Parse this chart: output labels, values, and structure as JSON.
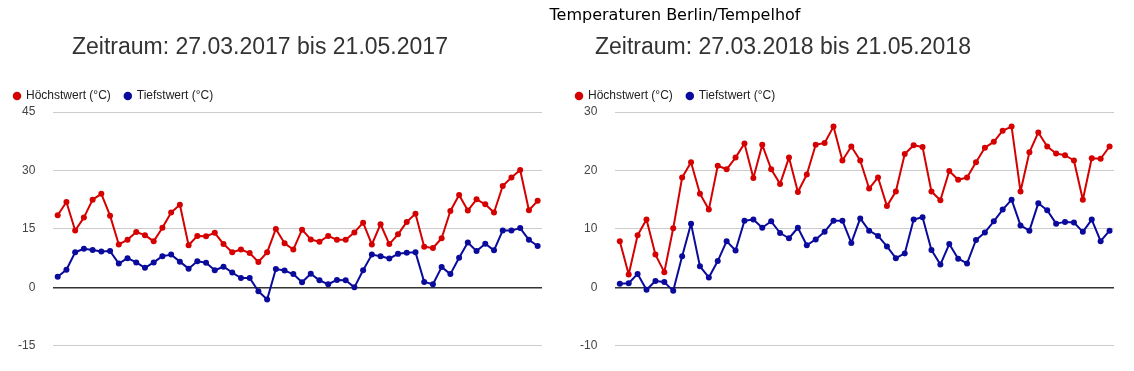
{
  "chart_data": [
    {
      "type": "line",
      "title": "Zeitraum: 27.03.2017 bis 21.05.2017",
      "annotations": [
        "Temperaturen Berlin/Tempelhof"
      ],
      "categories": [
        null,
        null,
        null,
        null,
        null,
        null,
        null,
        null,
        null,
        null,
        null,
        null,
        null,
        null,
        null,
        null,
        null,
        null,
        null,
        null,
        null,
        null,
        null,
        null,
        null,
        null,
        null,
        null,
        null,
        null,
        null,
        null,
        null,
        null,
        null,
        null,
        null,
        null,
        null,
        null,
        null,
        null,
        null,
        null,
        null,
        null,
        null,
        null,
        null,
        null,
        null,
        null,
        null,
        null,
        null,
        null
      ],
      "series": [
        {
          "name": "Höchstwert (°C)",
          "color": "#d50000",
          "values": [
            18.5,
            21.9,
            14.6,
            17.9,
            22.5,
            24.0,
            18.4,
            11.0,
            12.2,
            14.2,
            13.4,
            11.8,
            15.3,
            19.2,
            21.2,
            10.8,
            13.2,
            13.1,
            14.0,
            11.1,
            9.0,
            9.7,
            8.8,
            6.5,
            9.0,
            15.0,
            11.3,
            9.7,
            14.8,
            12.3,
            11.7,
            13.2,
            12.2,
            12.2,
            14.1,
            16.6,
            11.0,
            16.2,
            11.1,
            13.6,
            16.8,
            18.9,
            10.4,
            10.1,
            12.6,
            19.6,
            23.7,
            19.7,
            22.6,
            21.3,
            19.2,
            26.0,
            28.2,
            30.1,
            19.8,
            22.2
          ]
        },
        {
          "name": "Tiefstwert (°C)",
          "color": "#0a0a9c",
          "values": [
            2.7,
            4.5,
            9.0,
            9.9,
            9.6,
            9.2,
            9.3,
            6.1,
            7.5,
            6.4,
            5.0,
            6.4,
            8.0,
            8.4,
            6.6,
            4.8,
            6.7,
            6.3,
            4.4,
            5.3,
            3.8,
            2.4,
            2.4,
            -1.0,
            -3.1,
            4.7,
            4.3,
            3.4,
            1.3,
            3.5,
            1.8,
            0.8,
            1.9,
            1.8,
            0.0,
            4.4,
            8.4,
            8.0,
            7.4,
            8.6,
            8.9,
            9.0,
            1.4,
            0.8,
            5.2,
            3.4,
            7.6,
            11.5,
            9.3,
            11.2,
            9.5,
            14.6,
            14.6,
            15.2,
            12.2,
            10.6
          ]
        }
      ],
      "ylim": [
        -15,
        45
      ],
      "yticks": [
        -15,
        0,
        15,
        30,
        45
      ],
      "grid": "y",
      "legend": "top left",
      "tick_labels": "y",
      "marker": "circle",
      "line_style": "solid"
    },
    {
      "type": "line",
      "title": "Zeitraum: 27.03.2018 bis 21.05.2018",
      "categories": [
        null,
        null,
        null,
        null,
        null,
        null,
        null,
        null,
        null,
        null,
        null,
        null,
        null,
        null,
        null,
        null,
        null,
        null,
        null,
        null,
        null,
        null,
        null,
        null,
        null,
        null,
        null,
        null,
        null,
        null,
        null,
        null,
        null,
        null,
        null,
        null,
        null,
        null,
        null,
        null,
        null,
        null,
        null,
        null,
        null,
        null,
        null,
        null,
        null,
        null,
        null,
        null,
        null,
        null,
        null,
        null
      ],
      "series": [
        {
          "name": "Höchstwert (°C)",
          "color": "#d50000",
          "values": [
            7.9,
            2.2,
            8.9,
            11.6,
            5.6,
            2.6,
            10.1,
            18.8,
            21.4,
            16.0,
            13.3,
            20.8,
            20.2,
            22.2,
            24.6,
            18.7,
            24.4,
            20.2,
            17.7,
            22.2,
            16.3,
            19.3,
            24.4,
            24.7,
            27.5,
            21.7,
            24.1,
            21.7,
            16.9,
            18.8,
            13.9,
            16.4,
            22.8,
            24.3,
            24.0,
            16.4,
            14.9,
            19.9,
            18.4,
            18.8,
            21.4,
            23.9,
            24.9,
            26.8,
            27.5,
            16.4,
            23.1,
            26.5,
            24.1,
            22.9,
            22.6,
            21.7,
            15.0,
            22.1,
            22.0,
            24.1
          ]
        },
        {
          "name": "Tiefstwert (°C)",
          "color": "#0a0a9c",
          "values": [
            0.6,
            0.7,
            2.3,
            -0.4,
            1.1,
            0.9,
            -0.6,
            5.3,
            10.9,
            3.6,
            1.7,
            4.5,
            7.9,
            6.3,
            11.4,
            11.6,
            10.2,
            11.3,
            9.3,
            8.4,
            10.2,
            7.2,
            8.2,
            9.5,
            11.4,
            11.4,
            7.6,
            11.8,
            9.7,
            8.8,
            7.0,
            5.0,
            5.8,
            11.6,
            12.0,
            6.4,
            3.9,
            7.4,
            4.9,
            4.1,
            8.1,
            9.4,
            11.3,
            13.3,
            15.0,
            10.6,
            9.7,
            14.4,
            13.2,
            10.9,
            11.2,
            11.1,
            9.5,
            11.6,
            7.9,
            9.7
          ]
        }
      ],
      "ylim": [
        -10,
        30
      ],
      "yticks": [
        -10,
        0,
        10,
        20,
        30
      ],
      "grid": "y",
      "legend": "top left",
      "tick_labels": "y",
      "marker": "circle",
      "line_style": "solid"
    }
  ]
}
